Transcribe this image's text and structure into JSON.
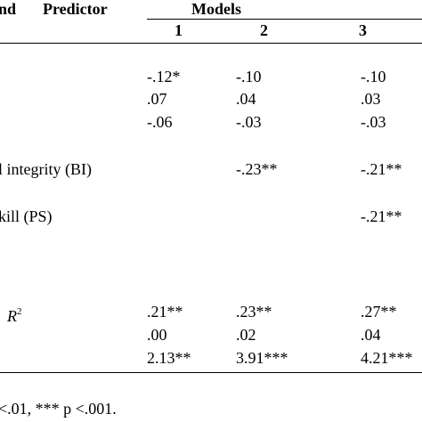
{
  "header": {
    "col0": "nd",
    "col1": "Predictor",
    "models": "Models",
    "model_numbers": [
      "1",
      "2",
      "3"
    ]
  },
  "rows": [
    {
      "m1": "-.12*",
      "m2": "-.10",
      "m3": "-.10"
    },
    {
      "m1": ".07",
      "m2": ".04",
      "m3": ".03"
    },
    {
      "m1": "-.06",
      "m2": "-.03",
      "m3": "-.03"
    },
    {
      "label": "l integrity (BI)",
      "m2": "-.23**",
      "m3": "-.21**"
    },
    {
      "label": "kill (PS)",
      "m3": "-.21**"
    },
    {
      "label": "R",
      "label_sup": "2",
      "m1": ".21**",
      "m2": ".23**",
      "m3": ".27**"
    },
    {
      "m1": ".00",
      "m2": ".02",
      "m3": ".04"
    },
    {
      "m1": "2.13**",
      "m2": "3.91***",
      "m3": "4.21***"
    }
  ],
  "note": "<.01, *** p <.001."
}
